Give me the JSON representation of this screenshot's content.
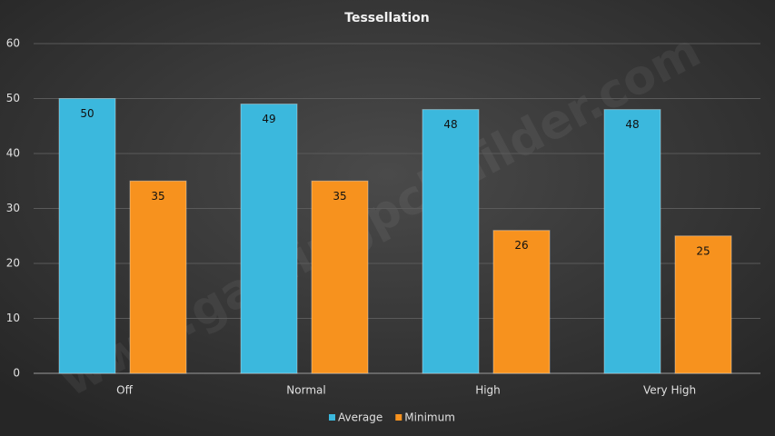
{
  "chart_data": {
    "type": "bar",
    "title": "Tessellation",
    "categories": [
      "Off",
      "Normal",
      "High",
      "Very High"
    ],
    "series": [
      {
        "name": "Average",
        "color": "#3bb8dd",
        "values": [
          50,
          49,
          48,
          48
        ]
      },
      {
        "name": "Minimum",
        "color": "#f7921e",
        "values": [
          35,
          35,
          26,
          25
        ]
      }
    ],
    "ylim": [
      0,
      60
    ],
    "yticks": [
      0,
      10,
      20,
      30,
      40,
      50,
      60
    ],
    "grid": true,
    "legend": "bottom",
    "watermark": "www.gamingpcbuilder.com"
  }
}
